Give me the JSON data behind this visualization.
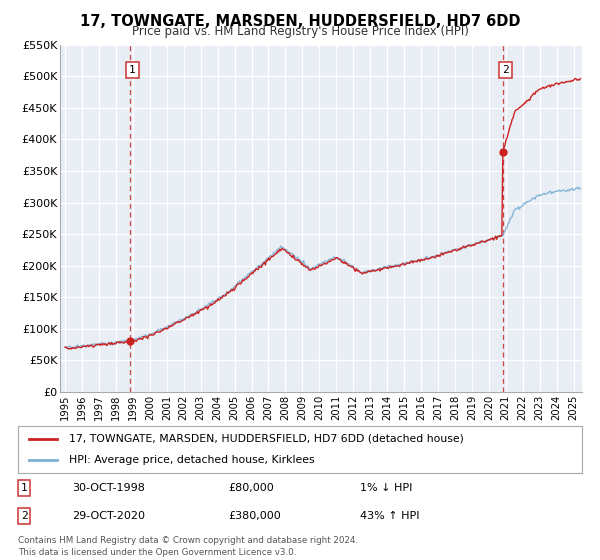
{
  "title": "17, TOWNGATE, MARSDEN, HUDDERSFIELD, HD7 6DD",
  "subtitle": "Price paid vs. HM Land Registry's House Price Index (HPI)",
  "legend_entry1": "17, TOWNGATE, MARSDEN, HUDDERSFIELD, HD7 6DD (detached house)",
  "legend_entry2": "HPI: Average price, detached house, Kirklees",
  "sale1_date": "30-OCT-1998",
  "sale1_price": 80000,
  "sale1_hpi": "1% ↓ HPI",
  "sale2_date": "29-OCT-2020",
  "sale2_price": 380000,
  "sale2_hpi": "43% ↑ HPI",
  "footnote": "Contains HM Land Registry data © Crown copyright and database right 2024.\nThis data is licensed under the Open Government Licence v3.0.",
  "hpi_color": "#7bafd4",
  "price_color": "#cc2222",
  "marker_color": "#cc2222",
  "vline_color": "#cc3333",
  "background_color": "#dde8f0",
  "plot_bg_color": "#e8eef4",
  "ylim": [
    0,
    550000
  ],
  "yticks": [
    0,
    50000,
    100000,
    150000,
    200000,
    250000,
    300000,
    350000,
    400000,
    450000,
    500000,
    550000
  ],
  "xlim_start": 1994.7,
  "xlim_end": 2025.5,
  "sale1_x": 1998.83,
  "sale2_x": 2020.83,
  "sale1_y": 80000,
  "sale2_y": 380000
}
